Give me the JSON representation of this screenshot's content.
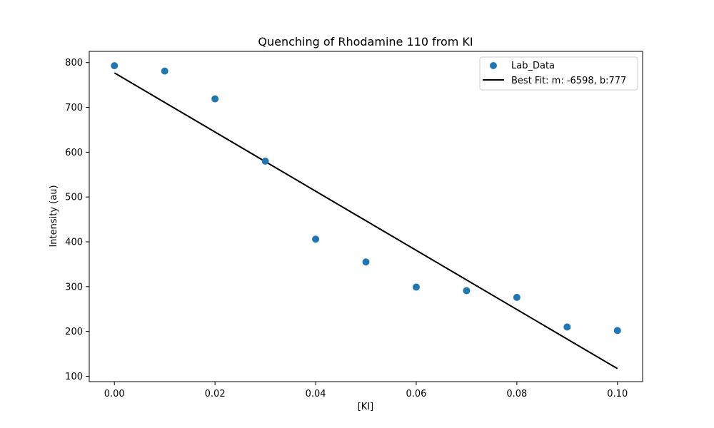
{
  "chart_data": {
    "type": "scatter",
    "title": "Quenching of Rhodamine 110 from KI",
    "xlabel": "[KI]",
    "ylabel": "Intensity (au)",
    "xlim": [
      -0.005,
      0.105
    ],
    "ylim": [
      88,
      825
    ],
    "x_ticks": [
      "0.00",
      "0.02",
      "0.04",
      "0.06",
      "0.08",
      "0.10"
    ],
    "y_ticks": [
      "100",
      "200",
      "300",
      "400",
      "500",
      "600",
      "700",
      "800"
    ],
    "grid": false,
    "legend_position": "top-right",
    "series": [
      {
        "name": "Lab_Data",
        "kind": "scatter",
        "color": "#1f77b4",
        "x": [
          0.0,
          0.01,
          0.02,
          0.03,
          0.04,
          0.05,
          0.06,
          0.07,
          0.08,
          0.09,
          0.1
        ],
        "y": [
          793,
          781,
          719,
          580,
          406,
          355,
          299,
          291,
          276,
          210,
          202
        ]
      },
      {
        "name": "Best Fit: m: -6598, b:777",
        "kind": "line",
        "color": "#000000",
        "x": [
          0.0,
          0.1
        ],
        "y": [
          777,
          117
        ]
      }
    ]
  }
}
